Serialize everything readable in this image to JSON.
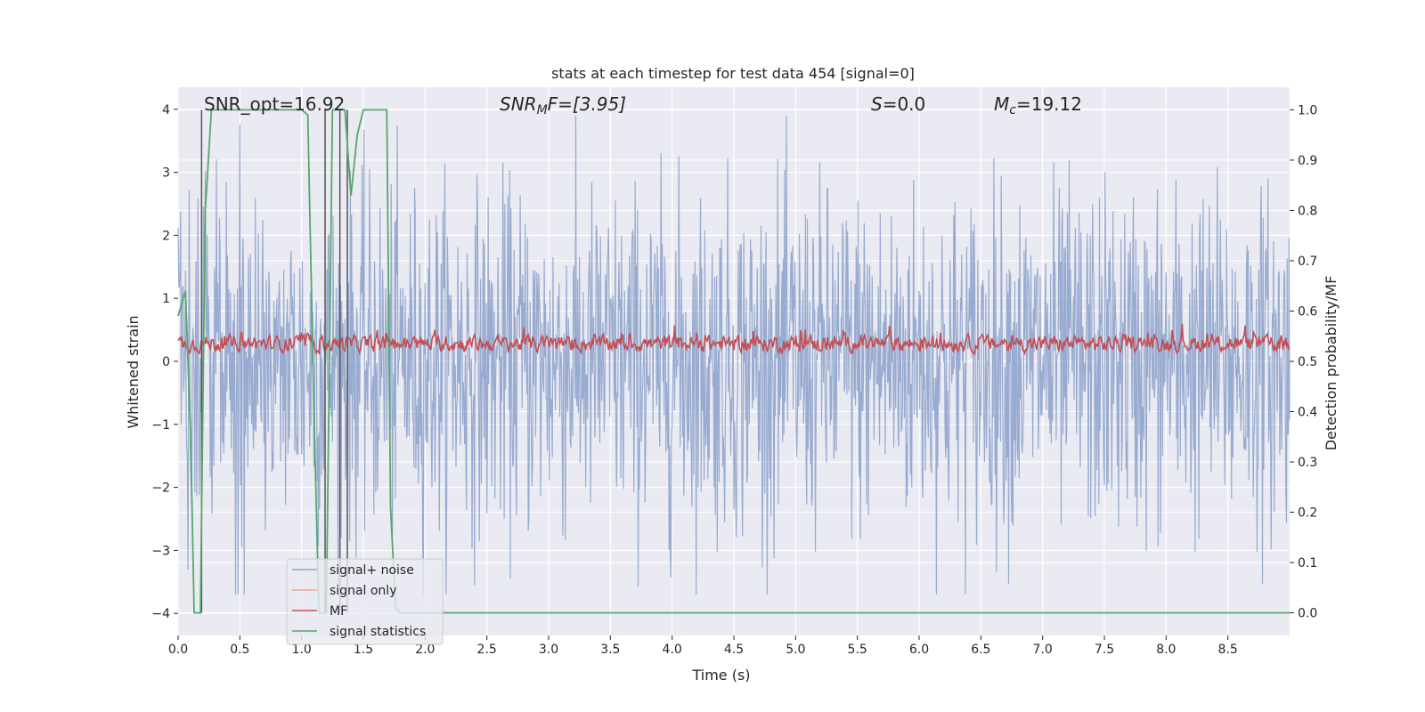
{
  "chart_data": {
    "type": "line",
    "title": "stats at each timestep for test data 454 [signal=0]",
    "xlabel": "Time (s)",
    "ylabel_left": "Whitened strain",
    "ylabel_right": "Detection probability/MF",
    "xlim": [
      0,
      9.0
    ],
    "ylim_left": [
      -4.35,
      4.35
    ],
    "ylim_right": [
      -0.045,
      1.045
    ],
    "x_ticks": [
      0.0,
      0.5,
      1.0,
      1.5,
      2.0,
      2.5,
      3.0,
      3.5,
      4.0,
      4.5,
      5.0,
      5.5,
      6.0,
      6.5,
      7.0,
      7.5,
      8.0,
      8.5
    ],
    "y_ticks_left": [
      -4,
      -3,
      -2,
      -1,
      0,
      1,
      2,
      3,
      4
    ],
    "y_ticks_right": [
      0.0,
      0.1,
      0.2,
      0.3,
      0.4,
      0.5,
      0.6,
      0.7,
      0.8,
      0.9,
      1.0
    ],
    "grid": true,
    "annotations": {
      "snr_opt": "SNR_opt=16.92",
      "snr_mf_main": "SNR",
      "snr_mf_sub": "M",
      "snr_mf_rest": "F=[3.95]",
      "s_main": "S",
      "s_rest": "=0.0",
      "mc_main": "M",
      "mc_sub": "c",
      "mc_rest": "=19.12"
    },
    "series": [
      {
        "name": "signal+ noise",
        "color": "#8fa4cc",
        "axis": "left",
        "noise_amplitude_range": [
          -3.7,
          3.9
        ],
        "sample_rate_hz": 200
      },
      {
        "name": "signal only",
        "color": "#e9a98a",
        "axis": "left",
        "values": []
      },
      {
        "name": "MF",
        "color": "#c44e52",
        "axis": "right",
        "range": [
          0.5,
          0.6
        ]
      },
      {
        "name": "signal statistics",
        "color": "#55a868",
        "axis": "right",
        "x": [
          0.0,
          0.06,
          0.1,
          0.13,
          0.18,
          0.22,
          0.27,
          0.32,
          0.5,
          1.0,
          1.05,
          1.1,
          1.14,
          1.2,
          1.25,
          1.3,
          1.35,
          1.4,
          1.45,
          1.5,
          1.6,
          1.69,
          1.72,
          1.76,
          1.8,
          1.9,
          2.0,
          9.0
        ],
        "y": [
          0.59,
          0.64,
          0.36,
          0.0,
          0.0,
          0.8,
          1.0,
          1.0,
          1.0,
          1.0,
          0.99,
          0.4,
          0.0,
          0.0,
          1.0,
          1.0,
          1.0,
          0.83,
          0.95,
          1.0,
          1.0,
          1.0,
          0.21,
          0.01,
          0.0,
          0.0,
          0.0,
          0.0
        ]
      }
    ],
    "vertical_lines": {
      "color": "#555555",
      "x": [
        0.19,
        1.19,
        1.31,
        1.37
      ]
    }
  },
  "legend": {
    "items": [
      {
        "label": "signal+ noise",
        "color": "#8fa4cc"
      },
      {
        "label": "signal only",
        "color": "#e9a98a"
      },
      {
        "label": "MF",
        "color": "#c44e52"
      },
      {
        "label": "signal statistics",
        "color": "#55a868"
      }
    ]
  },
  "colors": {
    "plot_bg": "#eaeaf2",
    "grid": "#ffffff"
  }
}
